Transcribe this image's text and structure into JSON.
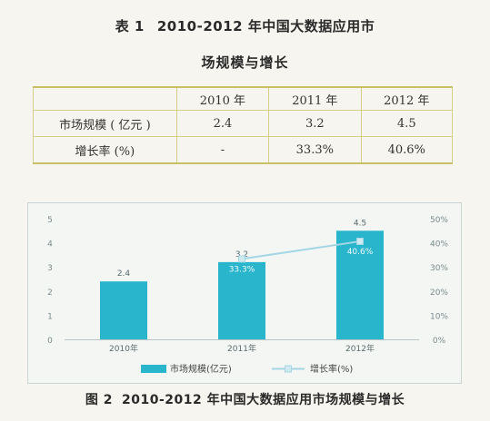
{
  "table": {
    "label": "表 1",
    "title_line1": "2010-2012 年中国大数据应用市",
    "title_line2": "场规模与增长",
    "headers": [
      "",
      "2010 年",
      "2011 年",
      "2012 年"
    ],
    "rows": [
      {
        "label": "市场规模 ( 亿元 )",
        "values": [
          "2.4",
          "3.2",
          "4.5"
        ]
      },
      {
        "label": "增长率 (%)",
        "values": [
          "-",
          "33.3%",
          "40.6%"
        ]
      }
    ]
  },
  "chart_data": {
    "type": "bar",
    "categories": [
      "2010年",
      "2011年",
      "2012年"
    ],
    "series": [
      {
        "name": "市场规模(亿元)",
        "type": "bar",
        "axis": "left",
        "values": [
          2.4,
          3.2,
          4.5
        ],
        "labels": [
          "2.4",
          "3.2",
          "4.5"
        ],
        "color": "#29b6cc"
      },
      {
        "name": "增长率(%)",
        "type": "line",
        "axis": "right",
        "values": [
          null,
          33.3,
          40.6
        ],
        "labels": [
          "",
          "33.3%",
          "40.6%"
        ],
        "color": "#a3d6e4"
      }
    ],
    "ylim": [
      0,
      5
    ],
    "yticks": [
      "0",
      "1",
      "2",
      "3",
      "4",
      "5"
    ],
    "y2lim": [
      0,
      50
    ],
    "y2ticks": [
      "0%",
      "10%",
      "20%",
      "30%",
      "40%",
      "50%"
    ],
    "legend_position": "bottom",
    "grid": false
  },
  "caption": {
    "label": "图 2",
    "text": "2010-2012 年中国大数据应用市场规模与增长"
  }
}
